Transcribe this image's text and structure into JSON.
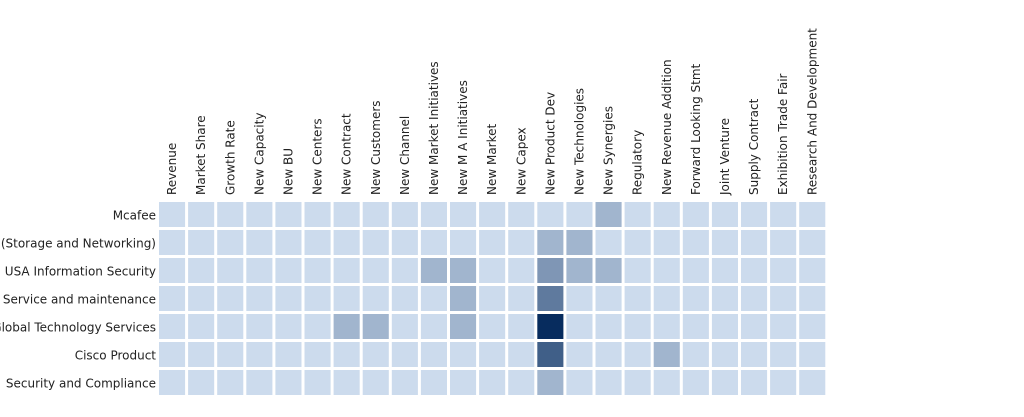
{
  "chart_data": {
    "type": "heatmap",
    "title": "",
    "xlabel": "",
    "ylabel": "",
    "columns": [
      "Revenue",
      "Market Share",
      "Growth Rate",
      "New Capacity",
      "New BU",
      "New Centers",
      "New Contract",
      "New Customers",
      "New Channel",
      "New Market Initiatives",
      "New M A Initiatives",
      "New Market",
      "New Capex",
      "New Product Dev",
      "New Technologies",
      "New Synergies",
      "Regulatory",
      "New Revenue Addition",
      "Forward Looking Stmt",
      "Joint Venture",
      "Supply Contract",
      "Exhibition Trade Fair",
      "Research And Development"
    ],
    "rows": [
      "Mcafee",
      "(Storage and Networking)",
      "USA Information Security",
      "Service and maintenance",
      "Global Technology Services",
      "Cisco Product",
      "Security and Compliance"
    ],
    "values": [
      [
        0,
        0,
        0,
        0,
        0,
        0,
        0,
        0,
        0,
        0,
        0,
        0,
        0,
        0,
        0,
        1,
        0,
        0,
        0,
        0,
        0,
        0,
        0
      ],
      [
        0,
        0,
        0,
        0,
        0,
        0,
        0,
        0,
        0,
        0,
        0,
        0,
        0,
        1,
        1,
        0,
        0,
        0,
        0,
        0,
        0,
        0,
        0
      ],
      [
        0,
        0,
        0,
        0,
        0,
        0,
        0,
        0,
        0,
        1,
        1,
        0,
        0,
        2,
        1,
        1,
        0,
        0,
        0,
        0,
        0,
        0,
        0
      ],
      [
        0,
        0,
        0,
        0,
        0,
        0,
        0,
        0,
        0,
        0,
        1,
        0,
        0,
        3,
        0,
        0,
        0,
        0,
        0,
        0,
        0,
        0,
        0
      ],
      [
        0,
        0,
        0,
        0,
        0,
        0,
        1,
        1,
        0,
        0,
        1,
        0,
        0,
        6,
        0,
        0,
        0,
        0,
        0,
        0,
        0,
        0,
        0
      ],
      [
        0,
        0,
        0,
        0,
        0,
        0,
        0,
        0,
        0,
        0,
        0,
        0,
        0,
        4,
        0,
        0,
        0,
        1,
        0,
        0,
        0,
        0,
        0
      ],
      [
        0,
        0,
        0,
        0,
        0,
        0,
        0,
        0,
        0,
        0,
        0,
        0,
        0,
        1,
        0,
        0,
        0,
        0,
        0,
        0,
        0,
        0,
        0
      ]
    ],
    "color_low": "#ccdbed",
    "color_high": "#072c5e",
    "grid": false,
    "legend": "none"
  }
}
